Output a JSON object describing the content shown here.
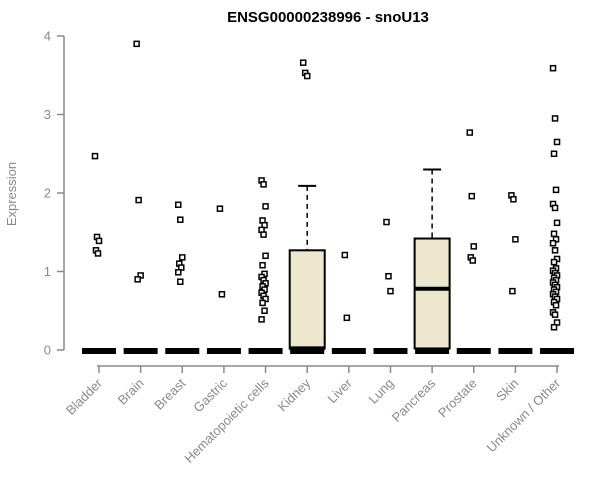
{
  "title": "ENSG00000238996 - snoU13",
  "y_axis": {
    "label": "Expression",
    "ticks": [
      0,
      1,
      2,
      3,
      4
    ],
    "min": 0,
    "max": 4
  },
  "colors": {
    "background": "#ffffff",
    "title": "#000000",
    "axis": "#8a8a8a",
    "tick_label": "#8a8a8a",
    "box_fill": "#ede7cd",
    "box_border": "#000000",
    "median": "#000000",
    "point_stroke": "#000000",
    "point_fill": "#ffffff"
  },
  "chart_data": {
    "type": "boxplot",
    "title": "ENSG00000238996 - snoU13",
    "xlabel": "",
    "ylabel": "Expression",
    "ylim": [
      0,
      4
    ],
    "grid": false,
    "categories": [
      "Bladder",
      "Brain",
      "Breast",
      "Gastric",
      "Hematopoietic cells",
      "Kidney",
      "Liver",
      "Lung",
      "Pancreas",
      "Prostate",
      "Skin",
      "Unknown / Other"
    ],
    "series": [
      {
        "name": "Bladder",
        "zero_cluster": true,
        "box": null,
        "points": [
          2.47,
          1.44,
          1.39,
          1.27,
          1.23
        ]
      },
      {
        "name": "Brain",
        "zero_cluster": true,
        "box": null,
        "points": [
          3.9,
          1.91,
          0.95,
          0.9
        ]
      },
      {
        "name": "Breast",
        "zero_cluster": true,
        "box": null,
        "points": [
          1.85,
          1.66,
          1.18,
          1.1,
          1.05,
          0.99,
          0.87
        ]
      },
      {
        "name": "Gastric",
        "zero_cluster": true,
        "box": null,
        "points": [
          1.8,
          0.71
        ]
      },
      {
        "name": "Hematopoietic cells",
        "zero_cluster": true,
        "box": null,
        "points": [
          2.16,
          2.11,
          1.83,
          1.65,
          1.59,
          1.53,
          1.47,
          1.2,
          1.08,
          0.97,
          0.93,
          0.89,
          0.85,
          0.81,
          0.77,
          0.73,
          0.69,
          0.65,
          0.6,
          0.5,
          0.39
        ]
      },
      {
        "name": "Kidney",
        "zero_cluster": true,
        "box": {
          "q1": 0.02,
          "median": 0.02,
          "q3": 1.27,
          "whisker_high": 2.09
        },
        "points": [
          3.66,
          3.53,
          3.49
        ]
      },
      {
        "name": "Liver",
        "zero_cluster": true,
        "box": null,
        "points": [
          1.21,
          0.41
        ]
      },
      {
        "name": "Lung",
        "zero_cluster": true,
        "box": null,
        "points": [
          1.63,
          0.94,
          0.75
        ]
      },
      {
        "name": "Pancreas",
        "zero_cluster": true,
        "box": {
          "q1": 0.02,
          "median": 0.78,
          "q3": 1.42,
          "whisker_high": 2.3
        },
        "points": []
      },
      {
        "name": "Prostate",
        "zero_cluster": true,
        "box": null,
        "points": [
          2.77,
          1.96,
          1.32,
          1.18,
          1.14
        ]
      },
      {
        "name": "Skin",
        "zero_cluster": true,
        "box": null,
        "points": [
          1.97,
          1.92,
          1.41,
          0.75
        ]
      },
      {
        "name": "Unknown / Other",
        "zero_cluster": true,
        "box": null,
        "points": [
          3.59,
          2.95,
          2.65,
          2.5,
          2.04,
          1.86,
          1.81,
          1.62,
          1.48,
          1.41,
          1.36,
          1.27,
          1.16,
          1.12,
          1.04,
          1.01,
          0.98,
          0.95,
          0.92,
          0.89,
          0.86,
          0.83,
          0.8,
          0.77,
          0.74,
          0.71,
          0.68,
          0.65,
          0.61,
          0.57,
          0.48,
          0.45,
          0.35,
          0.29
        ]
      }
    ]
  }
}
